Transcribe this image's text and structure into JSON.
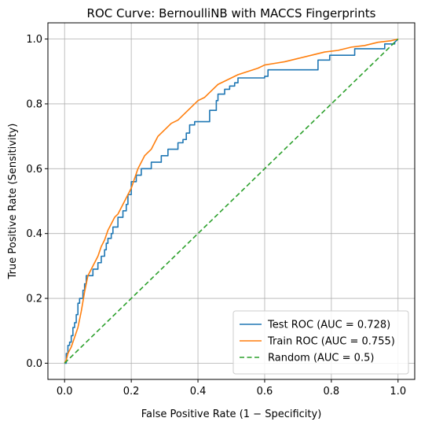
{
  "chart_data": {
    "type": "line",
    "title": "ROC Curve: BernoulliNB with MACCS Fingerprints",
    "xlabel": "False Positive Rate (1 − Specificity)",
    "ylabel": "True Positive Rate (Sensitivity)",
    "xlim": [
      -0.05,
      1.05
    ],
    "ylim": [
      -0.05,
      1.05
    ],
    "xticks": [
      "0.0",
      "0.2",
      "0.4",
      "0.6",
      "0.8",
      "1.0"
    ],
    "yticks": [
      "0.0",
      "0.2",
      "0.4",
      "0.6",
      "0.8",
      "1.0"
    ],
    "grid": true,
    "legend_position": "lower right",
    "series": [
      {
        "name": "Test ROC (AUC = 0.728)",
        "color": "#1f77b4",
        "style": "solid",
        "points": [
          [
            0,
            0
          ],
          [
            0.005,
            0
          ],
          [
            0.005,
            0.03
          ],
          [
            0.01,
            0.03
          ],
          [
            0.01,
            0.055
          ],
          [
            0.015,
            0.055
          ],
          [
            0.015,
            0.065
          ],
          [
            0.02,
            0.065
          ],
          [
            0.02,
            0.085
          ],
          [
            0.025,
            0.085
          ],
          [
            0.025,
            0.11
          ],
          [
            0.03,
            0.11
          ],
          [
            0.03,
            0.125
          ],
          [
            0.035,
            0.125
          ],
          [
            0.035,
            0.15
          ],
          [
            0.04,
            0.15
          ],
          [
            0.04,
            0.185
          ],
          [
            0.045,
            0.185
          ],
          [
            0.045,
            0.2
          ],
          [
            0.055,
            0.2
          ],
          [
            0.055,
            0.225
          ],
          [
            0.06,
            0.225
          ],
          [
            0.06,
            0.245
          ],
          [
            0.065,
            0.245
          ],
          [
            0.065,
            0.27
          ],
          [
            0.085,
            0.27
          ],
          [
            0.085,
            0.29
          ],
          [
            0.1,
            0.29
          ],
          [
            0.1,
            0.31
          ],
          [
            0.11,
            0.31
          ],
          [
            0.11,
            0.33
          ],
          [
            0.12,
            0.33
          ],
          [
            0.12,
            0.35
          ],
          [
            0.125,
            0.35
          ],
          [
            0.125,
            0.37
          ],
          [
            0.13,
            0.37
          ],
          [
            0.13,
            0.385
          ],
          [
            0.14,
            0.385
          ],
          [
            0.14,
            0.4
          ],
          [
            0.145,
            0.4
          ],
          [
            0.145,
            0.42
          ],
          [
            0.16,
            0.42
          ],
          [
            0.16,
            0.45
          ],
          [
            0.175,
            0.45
          ],
          [
            0.175,
            0.47
          ],
          [
            0.185,
            0.47
          ],
          [
            0.185,
            0.49
          ],
          [
            0.19,
            0.49
          ],
          [
            0.19,
            0.52
          ],
          [
            0.2,
            0.52
          ],
          [
            0.2,
            0.56
          ],
          [
            0.215,
            0.56
          ],
          [
            0.215,
            0.58
          ],
          [
            0.23,
            0.58
          ],
          [
            0.23,
            0.6
          ],
          [
            0.26,
            0.6
          ],
          [
            0.26,
            0.62
          ],
          [
            0.29,
            0.62
          ],
          [
            0.29,
            0.64
          ],
          [
            0.31,
            0.64
          ],
          [
            0.31,
            0.66
          ],
          [
            0.34,
            0.66
          ],
          [
            0.34,
            0.68
          ],
          [
            0.355,
            0.68
          ],
          [
            0.355,
            0.69
          ],
          [
            0.365,
            0.69
          ],
          [
            0.365,
            0.71
          ],
          [
            0.375,
            0.71
          ],
          [
            0.375,
            0.735
          ],
          [
            0.39,
            0.735
          ],
          [
            0.39,
            0.745
          ],
          [
            0.435,
            0.745
          ],
          [
            0.435,
            0.78
          ],
          [
            0.455,
            0.78
          ],
          [
            0.455,
            0.81
          ],
          [
            0.46,
            0.81
          ],
          [
            0.46,
            0.83
          ],
          [
            0.48,
            0.83
          ],
          [
            0.48,
            0.845
          ],
          [
            0.495,
            0.845
          ],
          [
            0.495,
            0.855
          ],
          [
            0.51,
            0.855
          ],
          [
            0.51,
            0.865
          ],
          [
            0.52,
            0.865
          ],
          [
            0.52,
            0.88
          ],
          [
            0.6,
            0.88
          ],
          [
            0.6,
            0.885
          ],
          [
            0.61,
            0.885
          ],
          [
            0.61,
            0.905
          ],
          [
            0.76,
            0.905
          ],
          [
            0.76,
            0.935
          ],
          [
            0.795,
            0.935
          ],
          [
            0.795,
            0.95
          ],
          [
            0.87,
            0.95
          ],
          [
            0.87,
            0.97
          ],
          [
            0.96,
            0.97
          ],
          [
            0.96,
            0.985
          ],
          [
            0.99,
            0.985
          ],
          [
            0.99,
            0.99
          ],
          [
            1.0,
            1.0
          ]
        ]
      },
      {
        "name": "Train ROC (AUC = 0.755)",
        "color": "#ff7f0e",
        "style": "solid",
        "points": [
          [
            0,
            0
          ],
          [
            0.005,
            0.01
          ],
          [
            0.01,
            0.03
          ],
          [
            0.02,
            0.05
          ],
          [
            0.03,
            0.08
          ],
          [
            0.04,
            0.11
          ],
          [
            0.05,
            0.16
          ],
          [
            0.06,
            0.22
          ],
          [
            0.07,
            0.27
          ],
          [
            0.08,
            0.29
          ],
          [
            0.09,
            0.31
          ],
          [
            0.1,
            0.33
          ],
          [
            0.11,
            0.36
          ],
          [
            0.12,
            0.38
          ],
          [
            0.13,
            0.41
          ],
          [
            0.14,
            0.43
          ],
          [
            0.15,
            0.45
          ],
          [
            0.16,
            0.46
          ],
          [
            0.17,
            0.48
          ],
          [
            0.18,
            0.5
          ],
          [
            0.19,
            0.52
          ],
          [
            0.2,
            0.54
          ],
          [
            0.21,
            0.57
          ],
          [
            0.22,
            0.6
          ],
          [
            0.23,
            0.62
          ],
          [
            0.24,
            0.64
          ],
          [
            0.25,
            0.65
          ],
          [
            0.26,
            0.66
          ],
          [
            0.27,
            0.68
          ],
          [
            0.28,
            0.7
          ],
          [
            0.3,
            0.72
          ],
          [
            0.32,
            0.74
          ],
          [
            0.34,
            0.75
          ],
          [
            0.36,
            0.77
          ],
          [
            0.38,
            0.79
          ],
          [
            0.4,
            0.81
          ],
          [
            0.42,
            0.82
          ],
          [
            0.44,
            0.84
          ],
          [
            0.46,
            0.86
          ],
          [
            0.48,
            0.87
          ],
          [
            0.5,
            0.88
          ],
          [
            0.52,
            0.89
          ],
          [
            0.55,
            0.9
          ],
          [
            0.58,
            0.91
          ],
          [
            0.6,
            0.92
          ],
          [
            0.63,
            0.925
          ],
          [
            0.66,
            0.93
          ],
          [
            0.7,
            0.94
          ],
          [
            0.74,
            0.95
          ],
          [
            0.78,
            0.96
          ],
          [
            0.82,
            0.965
          ],
          [
            0.86,
            0.975
          ],
          [
            0.9,
            0.98
          ],
          [
            0.94,
            0.99
          ],
          [
            0.98,
            0.995
          ],
          [
            1.0,
            1.0
          ]
        ]
      },
      {
        "name": "Random (AUC = 0.5)",
        "color": "#2ca02c",
        "style": "dashed",
        "points": [
          [
            0,
            0
          ],
          [
            1,
            1
          ]
        ]
      }
    ]
  }
}
